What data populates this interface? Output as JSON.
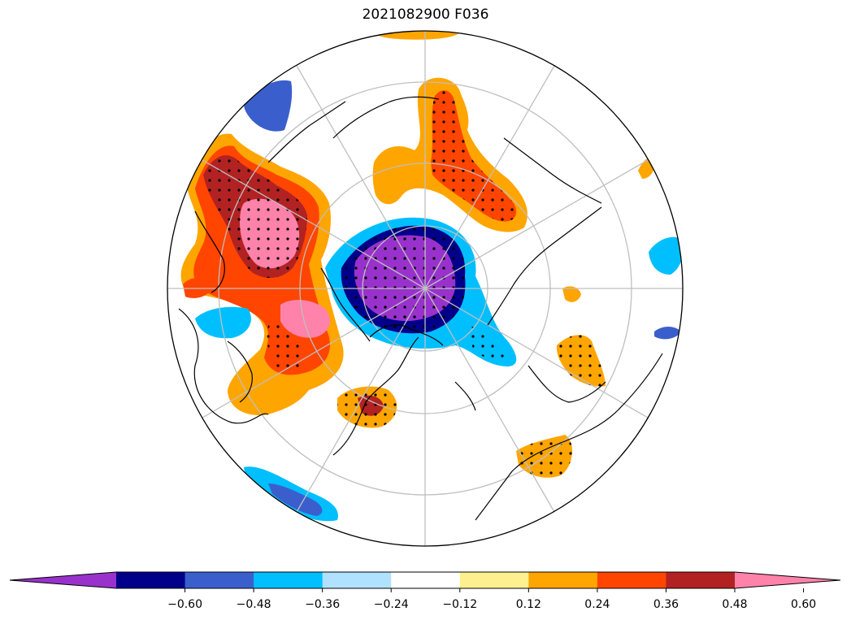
{
  "title": "2021082900 F036",
  "projection": "north-polar-stereographic",
  "graticule": {
    "latitudes": [
      30,
      45,
      60,
      75
    ],
    "meridian_spacing_deg": 30,
    "color": "#bfbfbf"
  },
  "stippling": "significant-regions",
  "colorbar": {
    "orientation": "horizontal",
    "extend": "both",
    "colors": [
      "#9932cc",
      "#00008b",
      "#3a5fcd",
      "#00bfff",
      "#b0e2ff",
      "#ffffff",
      "#fff08f",
      "#ffa500",
      "#ff4500",
      "#b22222",
      "#ff82ab"
    ],
    "tick_values": [
      -0.6,
      -0.48,
      -0.36,
      -0.24,
      -0.12,
      0.12,
      0.24,
      0.36,
      0.48,
      0.6
    ],
    "tick_labels": [
      "−0.60",
      "−0.48",
      "−0.36",
      "−0.24",
      "−0.12",
      "0.12",
      "0.24",
      "0.36",
      "0.48",
      "0.60"
    ]
  }
}
